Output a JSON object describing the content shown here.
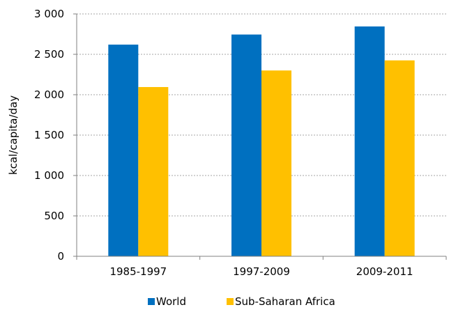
{
  "chart_data": {
    "type": "bar",
    "title": "",
    "xlabel": "",
    "ylabel": "kcal/capita/day",
    "categories": [
      "1985-1997",
      "1997-2009",
      "2009-2011"
    ],
    "series": [
      {
        "name": "World",
        "values": [
          2620,
          2745,
          2845
        ],
        "color": "#0070C0"
      },
      {
        "name": "Sub-Saharan Africa",
        "values": [
          2095,
          2300,
          2425
        ],
        "color": "#FFC000"
      }
    ],
    "ylim": [
      0,
      3000
    ],
    "yticks": [
      0,
      500,
      1000,
      1500,
      2000,
      2500,
      3000
    ],
    "ytick_labels": [
      "0",
      "500",
      "1 000",
      "1 500",
      "2 000",
      "2 500",
      "3 000"
    ],
    "grid": true,
    "legend_position": "bottom"
  }
}
